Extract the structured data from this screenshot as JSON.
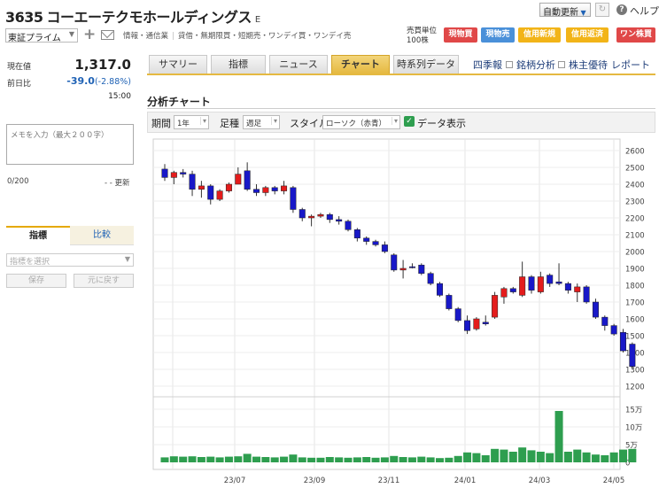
{
  "header": {
    "code": "3635",
    "name": "コーエーテクモホールディングス",
    "market_mark": "E",
    "market_select": "東証プライム",
    "sector": [
      "情報・通信業",
      "貸借・無期限買・短期売・ワンデイ買・ワンデイ売"
    ],
    "auto_update": "自動更新",
    "help": "ヘルプ",
    "unit_label": "売買単位",
    "unit_value": "100株",
    "trade_buttons": [
      {
        "label": "現物買",
        "color": "#e04848"
      },
      {
        "label": "現物売",
        "color": "#4a90d9"
      },
      {
        "label": "信用新規",
        "color": "#f2b418"
      },
      {
        "label": "信用返済",
        "color": "#f2b418"
      },
      {
        "label": "ワン株買",
        "color": "#e04848"
      }
    ]
  },
  "quote": {
    "price_label": "現在値",
    "price": "1,317.0",
    "change_label": "前日比",
    "change": "-39.0",
    "change_pct": "(-2.88%)",
    "time": "15:00"
  },
  "memo": {
    "placeholder": "メモを入力（最大２００字）",
    "count": "0/200",
    "updated": "- - 更新"
  },
  "side_tabs": {
    "indicator": "指標",
    "compare": "比較"
  },
  "indicator_select": "指標を選択",
  "buttons": {
    "save": "保存",
    "restore": "元に戻す"
  },
  "tabs": [
    {
      "label": "サマリー",
      "active": false
    },
    {
      "label": "指標",
      "active": false
    },
    {
      "label": "ニュース",
      "active": false
    },
    {
      "label": "チャート",
      "active": true
    },
    {
      "label": "時系列データ",
      "active": false
    }
  ],
  "links": [
    "四季報",
    "銘柄分析",
    "株主優待",
    "レポート"
  ],
  "section_title": "分析チャート",
  "controls": {
    "period_label": "期間",
    "period_value": "1年",
    "bar_label": "足種",
    "bar_value": "週足",
    "style_label": "スタイル",
    "style_value": "ローソク（赤青）",
    "data_display": "データ表示"
  },
  "chart_data": {
    "type": "candlestick",
    "price_axis": {
      "min": 1200,
      "max": 2600,
      "ticks": [
        2600,
        2500,
        2400,
        2300,
        2200,
        2100,
        2000,
        1900,
        1800,
        1700,
        1600,
        1500,
        1400,
        1300,
        1200
      ]
    },
    "volume_axis": {
      "ticks": [
        "15万",
        "10万",
        "5万",
        "0"
      ],
      "max": 160000
    },
    "x_labels": [
      "23/07",
      "23/09",
      "23/11",
      "24/01",
      "24/03",
      "24/05"
    ],
    "candles": [
      {
        "o": 2490,
        "h": 2520,
        "l": 2420,
        "c": 2440
      },
      {
        "o": 2440,
        "h": 2480,
        "l": 2400,
        "c": 2470
      },
      {
        "o": 2470,
        "h": 2490,
        "l": 2440,
        "c": 2460
      },
      {
        "o": 2460,
        "h": 2480,
        "l": 2330,
        "c": 2370
      },
      {
        "o": 2370,
        "h": 2420,
        "l": 2320,
        "c": 2390
      },
      {
        "o": 2390,
        "h": 2400,
        "l": 2280,
        "c": 2310
      },
      {
        "o": 2310,
        "h": 2370,
        "l": 2300,
        "c": 2360
      },
      {
        "o": 2360,
        "h": 2410,
        "l": 2350,
        "c": 2400
      },
      {
        "o": 2400,
        "h": 2500,
        "l": 2400,
        "c": 2460
      },
      {
        "o": 2480,
        "h": 2530,
        "l": 2360,
        "c": 2370
      },
      {
        "o": 2370,
        "h": 2400,
        "l": 2330,
        "c": 2350
      },
      {
        "o": 2350,
        "h": 2390,
        "l": 2330,
        "c": 2380
      },
      {
        "o": 2380,
        "h": 2390,
        "l": 2340,
        "c": 2360
      },
      {
        "o": 2360,
        "h": 2420,
        "l": 2340,
        "c": 2390
      },
      {
        "o": 2380,
        "h": 2390,
        "l": 2230,
        "c": 2250
      },
      {
        "o": 2250,
        "h": 2260,
        "l": 2180,
        "c": 2200
      },
      {
        "o": 2200,
        "h": 2220,
        "l": 2150,
        "c": 2210
      },
      {
        "o": 2210,
        "h": 2230,
        "l": 2200,
        "c": 2220
      },
      {
        "o": 2220,
        "h": 2230,
        "l": 2170,
        "c": 2190
      },
      {
        "o": 2190,
        "h": 2210,
        "l": 2160,
        "c": 2180
      },
      {
        "o": 2180,
        "h": 2190,
        "l": 2120,
        "c": 2130
      },
      {
        "o": 2130,
        "h": 2140,
        "l": 2060,
        "c": 2080
      },
      {
        "o": 2080,
        "h": 2090,
        "l": 2040,
        "c": 2060
      },
      {
        "o": 2060,
        "h": 2070,
        "l": 2030,
        "c": 2040
      },
      {
        "o": 2040,
        "h": 2060,
        "l": 1990,
        "c": 2000
      },
      {
        "o": 1980,
        "h": 1990,
        "l": 1880,
        "c": 1890
      },
      {
        "o": 1890,
        "h": 1950,
        "l": 1840,
        "c": 1900
      },
      {
        "o": 1910,
        "h": 1930,
        "l": 1900,
        "c": 1910
      },
      {
        "o": 1920,
        "h": 1930,
        "l": 1860,
        "c": 1870
      },
      {
        "o": 1870,
        "h": 1880,
        "l": 1800,
        "c": 1810
      },
      {
        "o": 1810,
        "h": 1820,
        "l": 1730,
        "c": 1740
      },
      {
        "o": 1740,
        "h": 1750,
        "l": 1650,
        "c": 1660
      },
      {
        "o": 1660,
        "h": 1670,
        "l": 1580,
        "c": 1590
      },
      {
        "o": 1590,
        "h": 1620,
        "l": 1510,
        "c": 1530
      },
      {
        "o": 1540,
        "h": 1610,
        "l": 1530,
        "c": 1600
      },
      {
        "o": 1580,
        "h": 1620,
        "l": 1560,
        "c": 1570
      },
      {
        "o": 1610,
        "h": 1760,
        "l": 1600,
        "c": 1740
      },
      {
        "o": 1730,
        "h": 1790,
        "l": 1690,
        "c": 1780
      },
      {
        "o": 1780,
        "h": 1790,
        "l": 1750,
        "c": 1760
      },
      {
        "o": 1740,
        "h": 1940,
        "l": 1730,
        "c": 1850
      },
      {
        "o": 1850,
        "h": 1860,
        "l": 1750,
        "c": 1770
      },
      {
        "o": 1760,
        "h": 1880,
        "l": 1750,
        "c": 1850
      },
      {
        "o": 1860,
        "h": 1870,
        "l": 1790,
        "c": 1810
      },
      {
        "o": 1820,
        "h": 1930,
        "l": 1800,
        "c": 1810
      },
      {
        "o": 1810,
        "h": 1820,
        "l": 1750,
        "c": 1770
      },
      {
        "o": 1760,
        "h": 1810,
        "l": 1700,
        "c": 1790
      },
      {
        "o": 1790,
        "h": 1800,
        "l": 1690,
        "c": 1700
      },
      {
        "o": 1700,
        "h": 1720,
        "l": 1600,
        "c": 1610
      },
      {
        "o": 1610,
        "h": 1620,
        "l": 1530,
        "c": 1560
      },
      {
        "o": 1560,
        "h": 1570,
        "l": 1500,
        "c": 1510
      },
      {
        "o": 1520,
        "h": 1540,
        "l": 1400,
        "c": 1410
      },
      {
        "o": 1450,
        "h": 1460,
        "l": 1300,
        "c": 1317
      }
    ],
    "volumes": [
      14000,
      17000,
      16000,
      17000,
      15000,
      16000,
      14000,
      16000,
      17000,
      24000,
      16000,
      15000,
      14000,
      16000,
      22000,
      14000,
      13000,
      13000,
      15000,
      14000,
      13000,
      14000,
      15000,
      13000,
      14000,
      18000,
      15000,
      14000,
      16000,
      14000,
      12000,
      13000,
      18000,
      28000,
      26000,
      20000,
      38000,
      36000,
      30000,
      42000,
      34000,
      30000,
      26000,
      145000,
      30000,
      36000,
      28000,
      22000,
      20000,
      28000,
      36000,
      38000
    ]
  }
}
